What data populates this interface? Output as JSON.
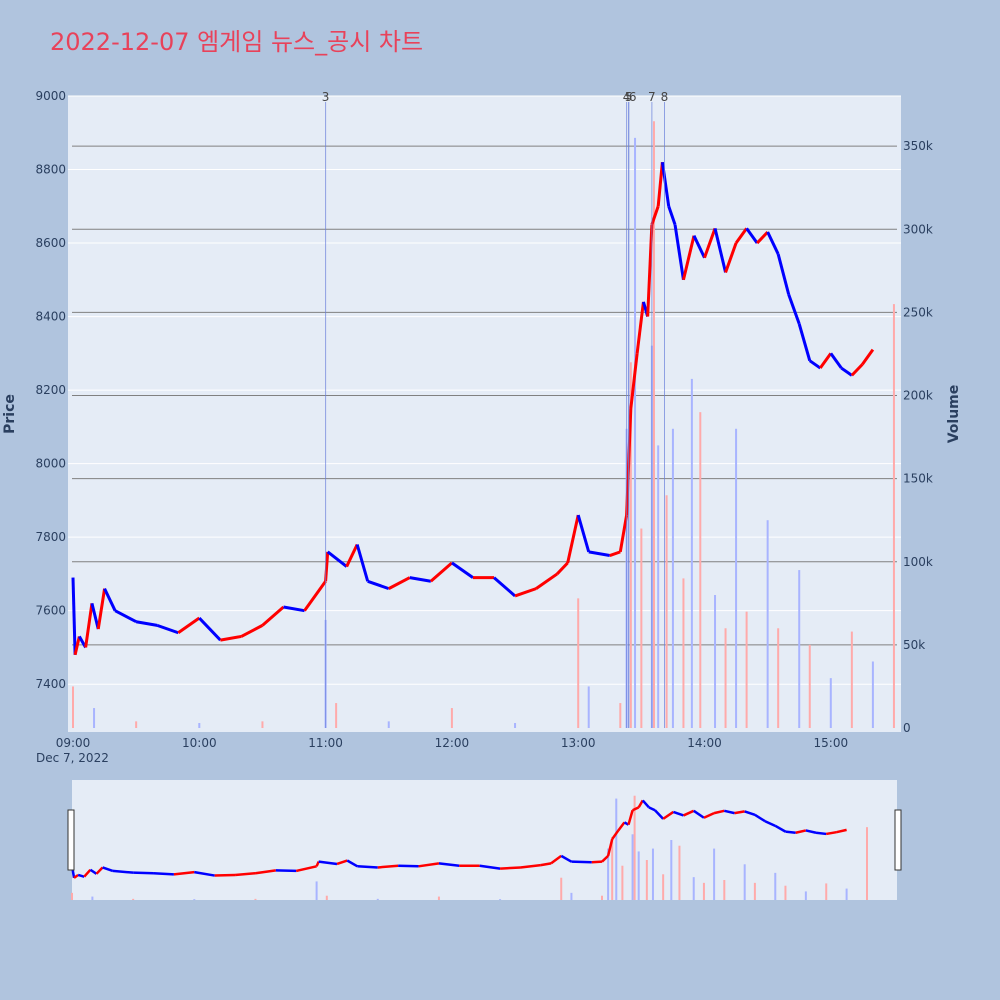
{
  "title": "2022-12-07 엠게임 뉴스_공시 차트",
  "colors": {
    "background": "#b0c4de",
    "plot_bg": "#e5ecf6",
    "up": "#ff0000",
    "down": "#0000ff",
    "title": "#e8425a",
    "hline": "#808080",
    "event_line": "#6a7fdb"
  },
  "chart_data": {
    "type": "candlestick",
    "date_label": "Dec 7, 2022",
    "ylabel": "Price",
    "y2label": "Volume",
    "ylim": [
      7270,
      9000
    ],
    "y2lim": [
      0,
      385000
    ],
    "price_ticks": [
      "9000",
      "8800",
      "8600",
      "8400",
      "8200",
      "8000",
      "7800",
      "7600",
      "7400"
    ],
    "volume_ticks": [
      "350k",
      "300k",
      "250k",
      "200k",
      "150k",
      "100k",
      "50k",
      "0"
    ],
    "time_ticks": [
      "09:00",
      "10:00",
      "11:00",
      "12:00",
      "13:00",
      "14:00",
      "15:00"
    ],
    "price_points": [
      {
        "t": "09:00",
        "p": 7690
      },
      {
        "t": "09:01",
        "p": 7480
      },
      {
        "t": "09:03",
        "p": 7530
      },
      {
        "t": "09:06",
        "p": 7500
      },
      {
        "t": "09:09",
        "p": 7620
      },
      {
        "t": "09:12",
        "p": 7550
      },
      {
        "t": "09:15",
        "p": 7660
      },
      {
        "t": "09:20",
        "p": 7600
      },
      {
        "t": "09:30",
        "p": 7570
      },
      {
        "t": "09:40",
        "p": 7560
      },
      {
        "t": "09:50",
        "p": 7540
      },
      {
        "t": "10:00",
        "p": 7580
      },
      {
        "t": "10:10",
        "p": 7520
      },
      {
        "t": "10:20",
        "p": 7530
      },
      {
        "t": "10:30",
        "p": 7560
      },
      {
        "t": "10:40",
        "p": 7610
      },
      {
        "t": "10:50",
        "p": 7600
      },
      {
        "t": "11:00",
        "p": 7680
      },
      {
        "t": "11:01",
        "p": 7760
      },
      {
        "t": "11:10",
        "p": 7720
      },
      {
        "t": "11:15",
        "p": 7780
      },
      {
        "t": "11:20",
        "p": 7680
      },
      {
        "t": "11:30",
        "p": 7660
      },
      {
        "t": "11:40",
        "p": 7690
      },
      {
        "t": "11:50",
        "p": 7680
      },
      {
        "t": "12:00",
        "p": 7730
      },
      {
        "t": "12:10",
        "p": 7690
      },
      {
        "t": "12:20",
        "p": 7690
      },
      {
        "t": "12:30",
        "p": 7640
      },
      {
        "t": "12:40",
        "p": 7660
      },
      {
        "t": "12:50",
        "p": 7700
      },
      {
        "t": "12:55",
        "p": 7730
      },
      {
        "t": "13:00",
        "p": 7860
      },
      {
        "t": "13:05",
        "p": 7760
      },
      {
        "t": "13:15",
        "p": 7750
      },
      {
        "t": "13:20",
        "p": 7760
      },
      {
        "t": "13:23",
        "p": 7860
      },
      {
        "t": "13:25",
        "p": 8150
      },
      {
        "t": "13:28",
        "p": 8300
      },
      {
        "t": "13:31",
        "p": 8440
      },
      {
        "t": "13:33",
        "p": 8400
      },
      {
        "t": "13:35",
        "p": 8650
      },
      {
        "t": "13:38",
        "p": 8700
      },
      {
        "t": "13:40",
        "p": 8820
      },
      {
        "t": "13:43",
        "p": 8700
      },
      {
        "t": "13:46",
        "p": 8650
      },
      {
        "t": "13:50",
        "p": 8500
      },
      {
        "t": "13:55",
        "p": 8620
      },
      {
        "t": "14:00",
        "p": 8560
      },
      {
        "t": "14:05",
        "p": 8640
      },
      {
        "t": "14:10",
        "p": 8520
      },
      {
        "t": "14:15",
        "p": 8600
      },
      {
        "t": "14:20",
        "p": 8640
      },
      {
        "t": "14:25",
        "p": 8600
      },
      {
        "t": "14:30",
        "p": 8630
      },
      {
        "t": "14:35",
        "p": 8570
      },
      {
        "t": "14:40",
        "p": 8460
      },
      {
        "t": "14:45",
        "p": 8380
      },
      {
        "t": "14:50",
        "p": 8280
      },
      {
        "t": "14:55",
        "p": 8260
      },
      {
        "t": "15:00",
        "p": 8300
      },
      {
        "t": "15:05",
        "p": 8260
      },
      {
        "t": "15:10",
        "p": 8240
      },
      {
        "t": "15:15",
        "p": 8270
      },
      {
        "t": "15:20",
        "p": 8310
      }
    ],
    "volume_points": [
      {
        "t": "09:00",
        "v": 25000
      },
      {
        "t": "09:10",
        "v": 12000
      },
      {
        "t": "09:30",
        "v": 4000
      },
      {
        "t": "10:00",
        "v": 3000
      },
      {
        "t": "10:30",
        "v": 4000
      },
      {
        "t": "11:00",
        "v": 65000
      },
      {
        "t": "11:05",
        "v": 15000
      },
      {
        "t": "11:30",
        "v": 4000
      },
      {
        "t": "12:00",
        "v": 12000
      },
      {
        "t": "12:30",
        "v": 3000
      },
      {
        "t": "13:00",
        "v": 78000
      },
      {
        "t": "13:05",
        "v": 25000
      },
      {
        "t": "13:20",
        "v": 15000
      },
      {
        "t": "13:23",
        "v": 180000
      },
      {
        "t": "13:25",
        "v": 220000
      },
      {
        "t": "13:27",
        "v": 355000
      },
      {
        "t": "13:30",
        "v": 120000
      },
      {
        "t": "13:35",
        "v": 230000
      },
      {
        "t": "13:36",
        "v": 365000
      },
      {
        "t": "13:38",
        "v": 170000
      },
      {
        "t": "13:42",
        "v": 140000
      },
      {
        "t": "13:45",
        "v": 180000
      },
      {
        "t": "13:50",
        "v": 90000
      },
      {
        "t": "13:54",
        "v": 210000
      },
      {
        "t": "13:58",
        "v": 190000
      },
      {
        "t": "14:05",
        "v": 80000
      },
      {
        "t": "14:10",
        "v": 60000
      },
      {
        "t": "14:15",
        "v": 180000
      },
      {
        "t": "14:20",
        "v": 70000
      },
      {
        "t": "14:30",
        "v": 125000
      },
      {
        "t": "14:35",
        "v": 60000
      },
      {
        "t": "14:45",
        "v": 95000
      },
      {
        "t": "14:50",
        "v": 50000
      },
      {
        "t": "15:00",
        "v": 30000
      },
      {
        "t": "15:10",
        "v": 58000
      },
      {
        "t": "15:20",
        "v": 40000
      },
      {
        "t": "15:30",
        "v": 255000
      }
    ],
    "events": [
      {
        "label": "3",
        "t": "11:00"
      },
      {
        "label": "4",
        "t": "13:23"
      },
      {
        "label": "5",
        "t": "13:24"
      },
      {
        "label": "6",
        "t": "13:24"
      },
      {
        "label": "7",
        "t": "13:35"
      },
      {
        "label": "8",
        "t": "13:41"
      }
    ],
    "hlines_volume": [
      350000,
      300000,
      250000,
      200000,
      150000,
      100000,
      50000
    ]
  }
}
